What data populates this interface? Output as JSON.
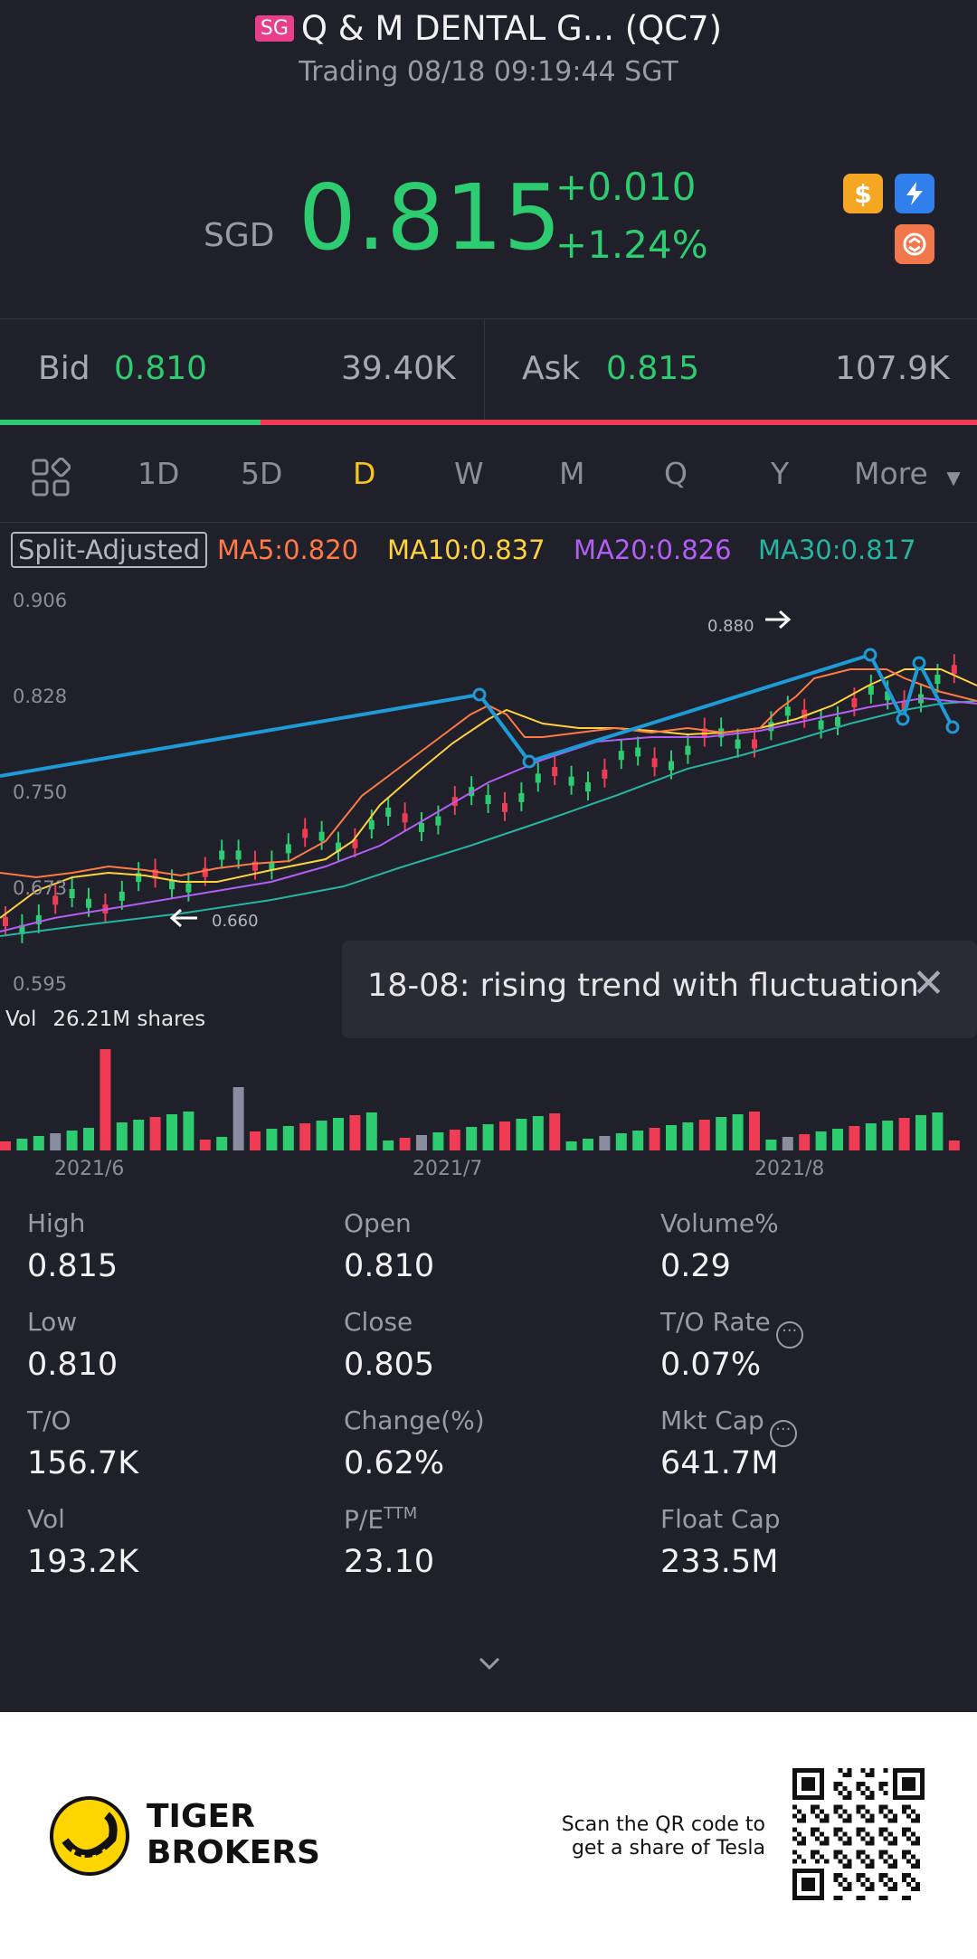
{
  "header": {
    "badge": "SG",
    "title": "Q & M DENTAL G... (QC7)",
    "subtitle": "Trading 08/18 09:19:44 SGT"
  },
  "quote": {
    "currency": "SGD",
    "price": "0.815",
    "change_abs": "+0.010",
    "change_pct": "+1.24%",
    "up_color": "#2ecc71",
    "down_color": "#ef3b54",
    "icons": [
      "dollar-icon",
      "flash-icon",
      "swap-icon"
    ]
  },
  "bidask": {
    "bid_label": "Bid",
    "bid": "0.810",
    "bid_size": "39.40K",
    "ask_label": "Ask",
    "ask": "0.815",
    "ask_size": "107.9K",
    "bid_ratio": 0.267
  },
  "tabs": {
    "items": [
      "1D",
      "5D",
      "D",
      "W",
      "M",
      "Q",
      "Y"
    ],
    "active": "D",
    "more": "More"
  },
  "ma": {
    "split_label": "Split-Adjusted",
    "ma5": "MA5:0.820",
    "ma10": "MA10:0.837",
    "ma20": "MA20:0.826",
    "ma30": "MA30:0.817",
    "colors": {
      "ma5": "#ff7a45",
      "ma10": "#ffd23f",
      "ma20": "#b45ef5",
      "ma30": "#26b5a0",
      "trend": "#1e9ad6"
    }
  },
  "chart": {
    "price_ticks": [
      "0.906",
      "0.828",
      "0.750",
      "0.673",
      "0.595"
    ],
    "high_marker": "0.880",
    "low_marker": "0.660",
    "dates": [
      "2021/6",
      "2021/7",
      "2021/8"
    ],
    "volume_label": "Vol",
    "volume_value": "26.21M shares"
  },
  "tooltip": {
    "text": "18-08: rising trend with fluctuation"
  },
  "stats": {
    "high_label": "High",
    "high": "0.815",
    "open_label": "Open",
    "open": "0.810",
    "volpct_label": "Volume%",
    "volpct": "0.29",
    "low_label": "Low",
    "low": "0.810",
    "close_label": "Close",
    "close": "0.805",
    "to_rate_label": "T/O Rate",
    "to_rate": "0.07%",
    "to_label": "T/O",
    "to": "156.7K",
    "changepct_label": "Change(%)",
    "changepct": "0.62%",
    "mktcap_label": "Mkt Cap",
    "mktcap": "641.7M",
    "vol_label": "Vol",
    "vol": "193.2K",
    "pe_label": "P/E",
    "pe_sup": "TTM",
    "pe": "23.10",
    "floatcap_label": "Float Cap",
    "floatcap": "233.5M"
  },
  "footer": {
    "brand_line1": "TIGER",
    "brand_line2": "BROKERS",
    "scan_line1": "Scan the QR code to",
    "scan_line2": "get a share of Tesla"
  }
}
